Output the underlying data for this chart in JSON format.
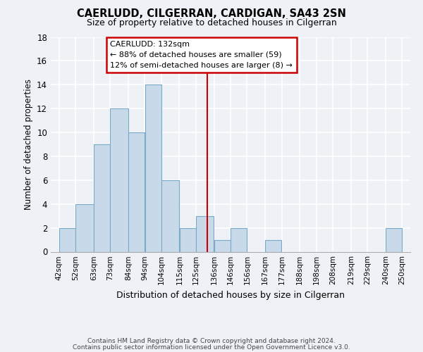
{
  "title": "CAERLUDD, CILGERRAN, CARDIGAN, SA43 2SN",
  "subtitle": "Size of property relative to detached houses in Cilgerran",
  "xlabel": "Distribution of detached houses by size in Cilgerran",
  "ylabel": "Number of detached properties",
  "bin_edges": [
    42,
    52,
    63,
    73,
    84,
    94,
    104,
    115,
    125,
    136,
    146,
    156,
    167,
    177,
    188,
    198,
    208,
    219,
    229,
    240,
    250
  ],
  "bin_labels": [
    "42sqm",
    "52sqm",
    "63sqm",
    "73sqm",
    "84sqm",
    "94sqm",
    "104sqm",
    "115sqm",
    "125sqm",
    "136sqm",
    "146sqm",
    "156sqm",
    "167sqm",
    "177sqm",
    "188sqm",
    "198sqm",
    "208sqm",
    "219sqm",
    "229sqm",
    "240sqm",
    "250sqm"
  ],
  "counts": [
    2,
    4,
    9,
    12,
    10,
    14,
    6,
    2,
    3,
    1,
    2,
    0,
    1,
    0,
    0,
    0,
    0,
    0,
    0,
    2
  ],
  "bar_color": "#c8d9ea",
  "bar_edge_color": "#7aaac8",
  "property_value": 132,
  "property_line_color": "#cc0000",
  "annotation_title": "CAERLUDD: 132sqm",
  "annotation_line1": "← 88% of detached houses are smaller (59)",
  "annotation_line2": "12% of semi-detached houses are larger (8) →",
  "annotation_box_color": "#ffffff",
  "annotation_box_edge_color": "#cc0000",
  "ylim": [
    0,
    18
  ],
  "yticks": [
    0,
    2,
    4,
    6,
    8,
    10,
    12,
    14,
    16,
    18
  ],
  "footer1": "Contains HM Land Registry data © Crown copyright and database right 2024.",
  "footer2": "Contains public sector information licensed under the Open Government Licence v3.0.",
  "background_color": "#eef2f7",
  "grid_color": "#ffffff"
}
